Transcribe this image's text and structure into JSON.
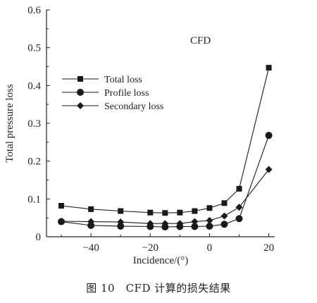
{
  "chart_data": {
    "type": "line",
    "title": "",
    "annotation": "CFD",
    "xlabel": "Incidence/(°)",
    "ylabel": "Total pressure loss",
    "xlim": [
      -55,
      22
    ],
    "ylim": [
      0,
      0.6
    ],
    "xticks": [
      -40,
      -20,
      0,
      20
    ],
    "xtick_labels": [
      "−40",
      "−20",
      "0",
      "20"
    ],
    "yticks": [
      0,
      0.1,
      0.2,
      0.3,
      0.4,
      0.5,
      0.6
    ],
    "ytick_labels": [
      "0",
      "0.1",
      "0.2",
      "0.3",
      "0.4",
      "0.5",
      "0.6"
    ],
    "grid": false,
    "legend_position": "upper-left",
    "series": [
      {
        "name": "Total loss",
        "marker": "square",
        "x": [
          -50,
          -40,
          -30,
          -20,
          -15,
          -10,
          -5,
          0,
          5,
          10,
          20
        ],
        "y": [
          0.082,
          0.073,
          0.068,
          0.064,
          0.063,
          0.064,
          0.068,
          0.076,
          0.089,
          0.127,
          0.447
        ]
      },
      {
        "name": "Profile loss",
        "marker": "circle",
        "x": [
          -50,
          -40,
          -30,
          -20,
          -15,
          -10,
          -5,
          0,
          5,
          10,
          20
        ],
        "y": [
          0.04,
          0.03,
          0.028,
          0.027,
          0.026,
          0.027,
          0.027,
          0.028,
          0.033,
          0.048,
          0.268
        ]
      },
      {
        "name": "Secondary loss",
        "marker": "diamond",
        "x": [
          -50,
          -40,
          -30,
          -20,
          -15,
          -10,
          -5,
          0,
          5,
          10,
          20
        ],
        "y": [
          0.041,
          0.04,
          0.039,
          0.035,
          0.035,
          0.035,
          0.04,
          0.043,
          0.055,
          0.078,
          0.178
        ]
      }
    ]
  },
  "caption": "图 10　CFD 计算的损失结果"
}
